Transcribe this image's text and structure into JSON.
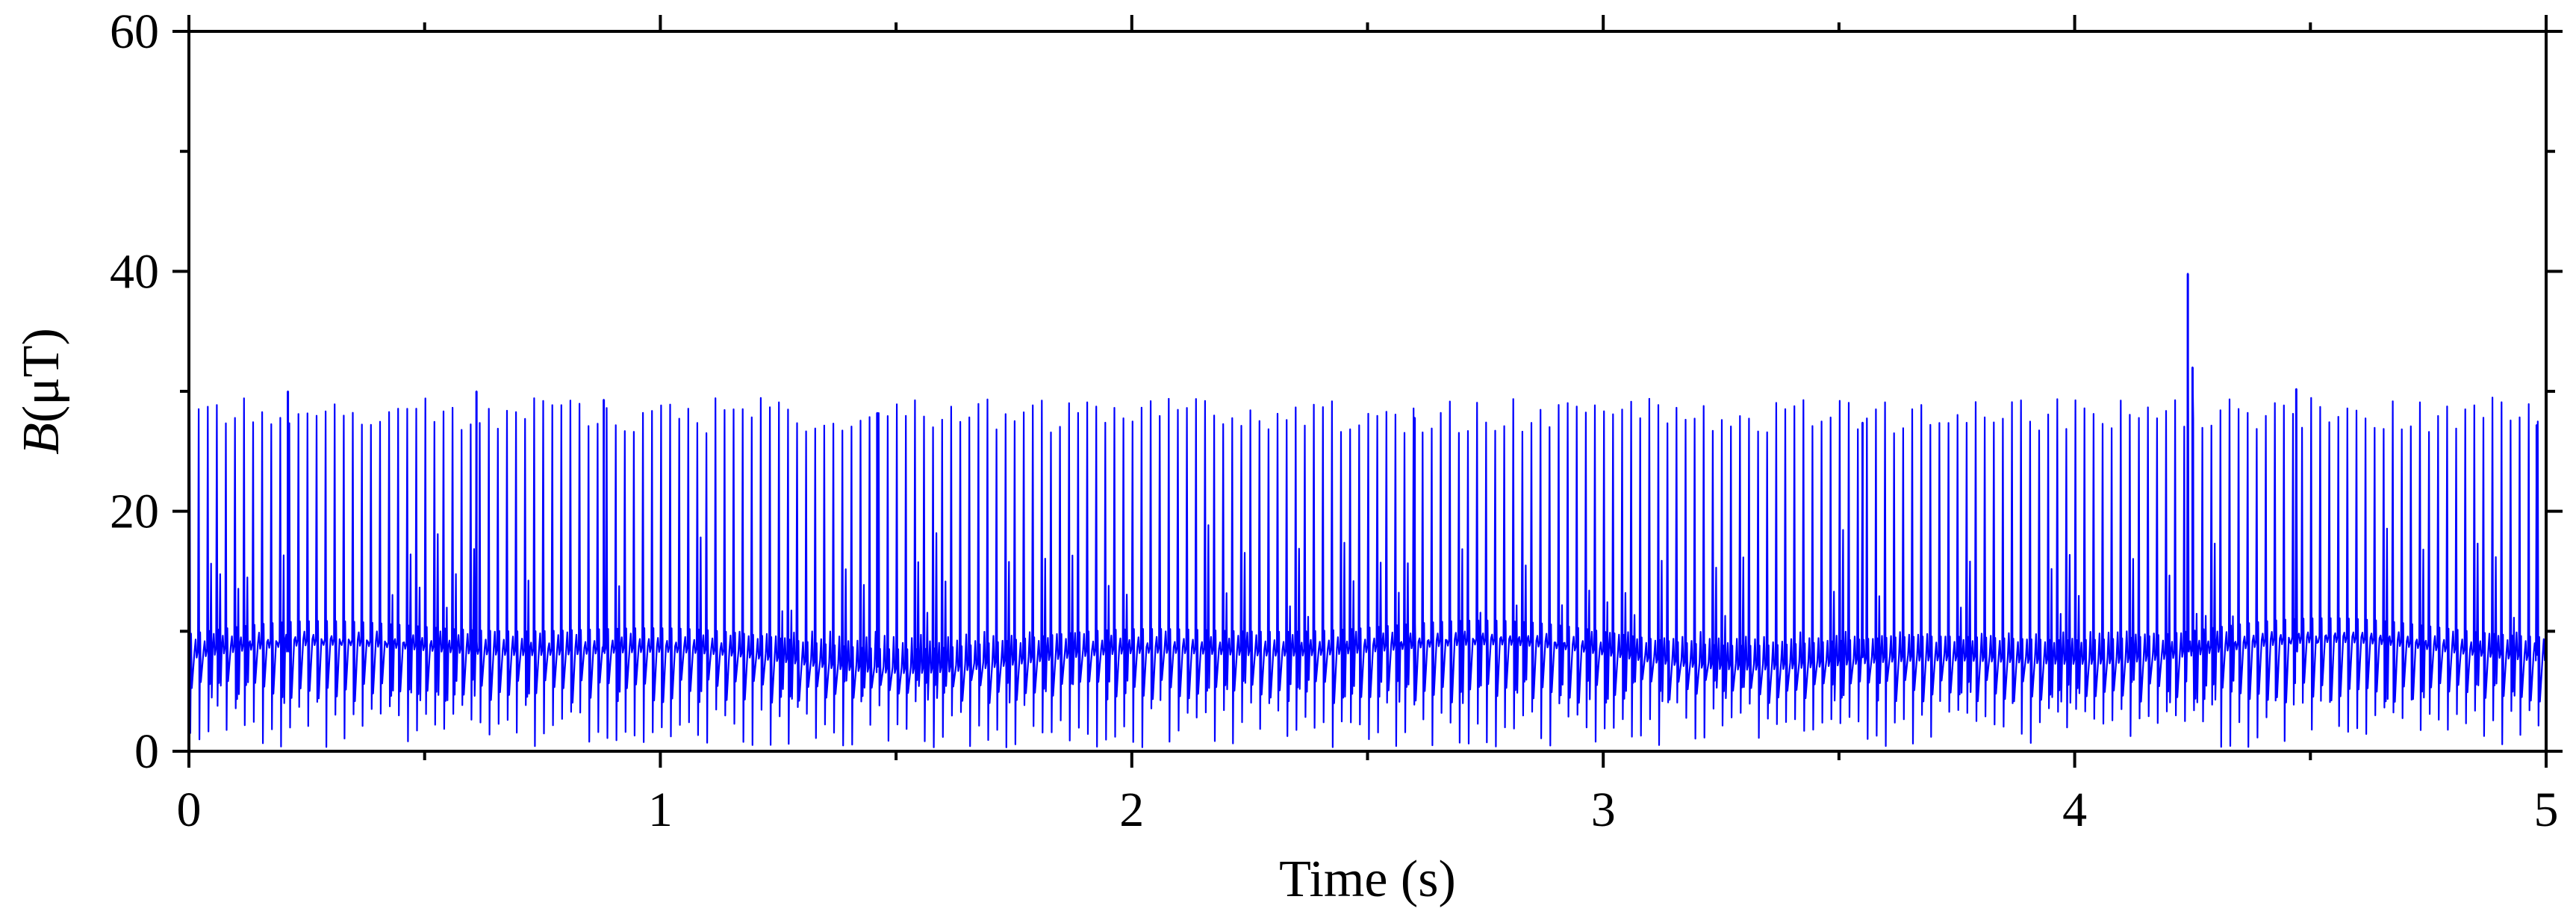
{
  "chart_data": {
    "type": "line",
    "title": "",
    "xlabel": "Time (s)",
    "ylabel_symbol": "B",
    "ylabel_unit": "(μT)",
    "xlim": [
      0,
      5
    ],
    "ylim": [
      0,
      60
    ],
    "x_ticks": [
      0,
      1,
      2,
      3,
      4,
      5
    ],
    "y_ticks": [
      0,
      20,
      40,
      60
    ],
    "grid": false,
    "legend": "none",
    "colors": {
      "line": "#0000ff",
      "axis": "#000000"
    },
    "series": [
      {
        "line_color": "#0000ff",
        "waveform": {
          "spike_count": 260,
          "baseline_mean": 8.3,
          "baseline_band": [
            4,
            10
          ],
          "spike_peak_range": [
            26.5,
            29.5
          ],
          "trough_min": 0.3
        },
        "points": [
          {
            "x": 0.21,
            "y": 30.0
          },
          {
            "x": 0.61,
            "y": 30.0
          },
          {
            "x": 0.88,
            "y": 29.3
          },
          {
            "x": 1.46,
            "y": 28.2
          },
          {
            "x": 2.6,
            "y": 27.8
          },
          {
            "x": 3.55,
            "y": 27.4
          },
          {
            "x": 4.24,
            "y": 39.8
          },
          {
            "x": 4.25,
            "y": 32.0
          },
          {
            "x": 4.47,
            "y": 30.2
          },
          {
            "x": 4.98,
            "y": 27.2
          }
        ]
      }
    ]
  }
}
